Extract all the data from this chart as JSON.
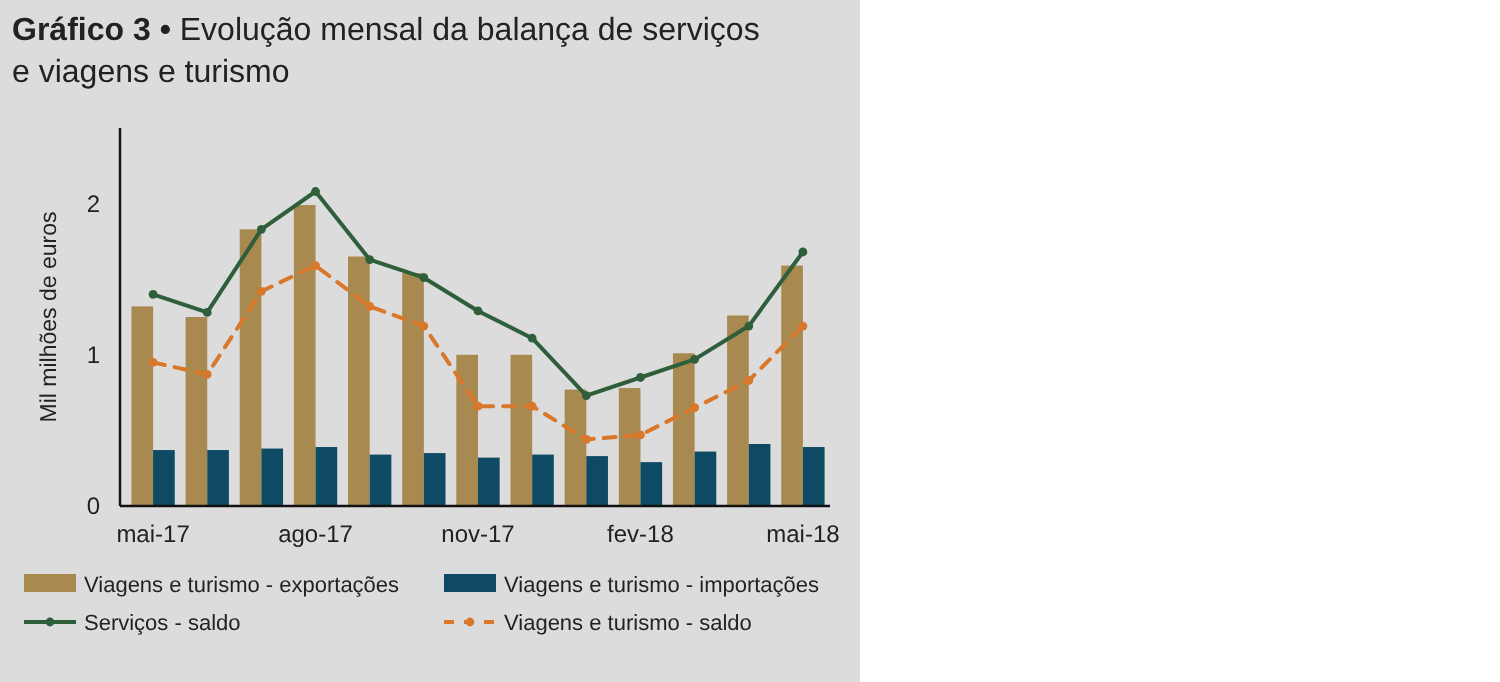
{
  "chart_data": {
    "type": "bar",
    "title": "Gráfico 3 • Evolução mensal da balança de serviços e viagens e turismo",
    "ylabel": "Mil milhões de euros",
    "categories": [
      "mai-17",
      null,
      null,
      "ago-17",
      null,
      null,
      "nov-17",
      null,
      null,
      "fev-18",
      null,
      null,
      "mai-18"
    ],
    "series": [
      {
        "name": "Viagens e turismo - exportações",
        "color": "#a8894f",
        "values": [
          1.32,
          1.25,
          1.83,
          1.99,
          1.65,
          1.54,
          1.0,
          1.0,
          0.77,
          0.78,
          1.01,
          1.26,
          1.59
        ]
      },
      {
        "name": "Viagens e turismo - importações",
        "color": "#0e4a63",
        "values": [
          0.37,
          0.37,
          0.38,
          0.39,
          0.34,
          0.35,
          0.32,
          0.34,
          0.33,
          0.29,
          0.36,
          0.41,
          0.39
        ]
      },
      {
        "name": "Serviços - saldo",
        "type": "line",
        "color": "#2e5e3a",
        "marker": "circle",
        "line_style": "solid",
        "values": [
          1.4,
          1.28,
          1.83,
          2.08,
          1.63,
          1.51,
          1.29,
          1.11,
          0.73,
          0.85,
          0.97,
          1.19,
          1.68
        ]
      },
      {
        "name": "Viagens e turismo - saldo",
        "type": "line",
        "color": "#d9772a",
        "marker": "circle",
        "line_style": "dashed",
        "values": [
          0.95,
          0.87,
          1.42,
          1.59,
          1.32,
          1.19,
          0.66,
          0.66,
          0.44,
          0.47,
          0.65,
          0.83,
          1.19
        ]
      }
    ],
    "ylim": [
      0,
      2.5
    ],
    "yticks": [
      0,
      1,
      2
    ],
    "grid": false,
    "legend": "bottom"
  }
}
